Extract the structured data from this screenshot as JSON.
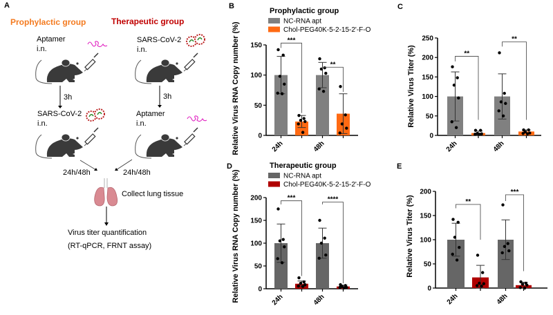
{
  "panel_a": {
    "letter": "A",
    "prophylactic_title": "Prophylactic group",
    "therapeutic_title": "Therapeutic group",
    "prophylactic_color": "#f47b20",
    "therapeutic_color": "#c00000",
    "left_step1": "Aptamer",
    "left_step1_route": "i.n.",
    "left_interval": "3h",
    "left_step2": "SARS-CoV-2",
    "left_step2_route": "i.n.",
    "right_step1": "SARS-CoV-2",
    "right_step1_route": "i.n.",
    "right_interval": "3h",
    "right_step2": "Aptamer",
    "right_step2_route": "i.n.",
    "left_timepoint": "24h/48h",
    "right_timepoint": "24h/48h",
    "collect": "Collect lung tissue",
    "quant": "Virus titer quantification",
    "assay": "(RT-qPCR, FRNT assay)",
    "icons": [
      "mouse-icon",
      "syringe-icon",
      "virus-icon",
      "aptamer-icon",
      "lung-icon"
    ]
  },
  "chart_data": [
    {
      "panel": "B",
      "type": "bar",
      "title": "Prophylactic group",
      "ylabel": "Relative Virus RNA Copy number (%)",
      "ylim": [
        0,
        150
      ],
      "yticks": [
        0,
        50,
        100,
        150
      ],
      "categories": [
        "24h",
        "48h"
      ],
      "legend": "top",
      "series": [
        {
          "name": "NC-RNA apt",
          "color": "#808080",
          "values": [
            100,
            100
          ],
          "sd": [
            31,
            21
          ],
          "points": [
            [
              142,
              133,
              98,
              85,
              70,
              69
            ],
            [
              127,
              112,
              110,
              103,
              77,
              73
            ]
          ]
        },
        {
          "name": "Chol-PEG40K-5-2-15-2'-F-O",
          "color": "#ff6a13",
          "values": [
            23,
            36
          ],
          "sd": [
            10,
            33
          ],
          "points": [
            [
              33,
              28,
              25,
              23,
              19,
              5
            ],
            [
              81,
              34,
              19,
              12,
              4
            ]
          ]
        }
      ],
      "significance": [
        {
          "category": "24h",
          "label": "***",
          "top": 153,
          "left_end": 145,
          "right_end": 37
        },
        {
          "category": "48h",
          "label": "**",
          "top": 113,
          "left_end": 110,
          "right_end": 72
        }
      ]
    },
    {
      "panel": "C",
      "type": "bar",
      "title": "",
      "ylabel": "Relative Virus Titer (%)",
      "ylim": [
        0,
        250
      ],
      "yticks": [
        0,
        50,
        100,
        150,
        200,
        250
      ],
      "categories": [
        "24h",
        "48h"
      ],
      "series": [
        {
          "color": "#808080",
          "values": [
            100,
            100
          ],
          "sd": [
            63,
            58
          ],
          "points": [
            [
              176,
              148,
              129,
              96,
              35,
              20
            ],
            [
              212,
              108,
              86,
              82,
              63,
              50
            ]
          ]
        },
        {
          "color": "#ff6a13",
          "values": [
            6,
            10
          ],
          "sd": [
            5,
            4
          ],
          "points": [
            [
              13,
              13,
              5,
              4,
              3,
              3
            ],
            [
              14,
              14,
              9,
              6,
              5,
              4
            ]
          ]
        }
      ],
      "significance": [
        {
          "category": "24h",
          "label": "**",
          "top": 203,
          "left_end": 190,
          "right_end": 40
        },
        {
          "category": "48h",
          "label": "**",
          "top": 240,
          "left_end": 228,
          "right_end": 40
        }
      ]
    },
    {
      "panel": "D",
      "type": "bar",
      "title": "Therapeutic group",
      "ylabel": "Relative Virus RNA Copy number (%)",
      "ylim": [
        0,
        200
      ],
      "yticks": [
        0,
        50,
        100,
        150,
        200
      ],
      "categories": [
        "24h",
        "48h"
      ],
      "legend": "top",
      "series": [
        {
          "name": "NC-RNA apt",
          "color": "#666666",
          "values": [
            100,
            100
          ],
          "sd": [
            42,
            33
          ],
          "points": [
            [
              175,
              108,
              105,
              92,
              66,
              57
            ],
            [
              150,
              111,
              100,
              74,
              67
            ]
          ]
        },
        {
          "name": "Chol-PEG40K-5-2-15-2'-F-O",
          "color": "#b00000",
          "values": [
            11,
            5
          ],
          "sd": [
            6,
            3
          ],
          "points": [
            [
              24,
              15,
              12,
              9,
              6,
              5
            ],
            [
              9,
              7,
              5,
              3,
              3,
              2
            ]
          ]
        }
      ],
      "significance": [
        {
          "category": "24h",
          "label": "***",
          "top": 193,
          "left_end": 185,
          "right_end": 28
        },
        {
          "category": "48h",
          "label": "****",
          "top": 190,
          "left_end": 185,
          "right_end": 12
        }
      ]
    },
    {
      "panel": "E",
      "type": "bar",
      "title": "",
      "ylabel": "Relative Virus Titer (%)",
      "ylim": [
        0,
        200
      ],
      "yticks": [
        0,
        50,
        100,
        150,
        200
      ],
      "categories": [
        "24h",
        "48h"
      ],
      "series": [
        {
          "color": "#666666",
          "values": [
            100,
            100
          ],
          "sd": [
            34,
            41
          ],
          "points": [
            [
              142,
              136,
              105,
              84,
              70,
              58
            ],
            [
              172,
              92,
              86,
              77,
              73
            ]
          ]
        },
        {
          "color": "#b00000",
          "values": [
            22,
            6
          ],
          "sd": [
            25,
            6
          ],
          "points": [
            [
              68,
              32,
              10,
              9,
              5,
              4
            ],
            [
              13,
              10,
              8,
              6,
              1,
              0
            ]
          ]
        }
      ],
      "significance": [
        {
          "category": "24h",
          "label": "**",
          "top": 173,
          "left_end": 165,
          "right_end": 100
        },
        {
          "category": "48h",
          "label": "***",
          "top": 193,
          "left_end": 180,
          "right_end": 35
        }
      ]
    }
  ]
}
